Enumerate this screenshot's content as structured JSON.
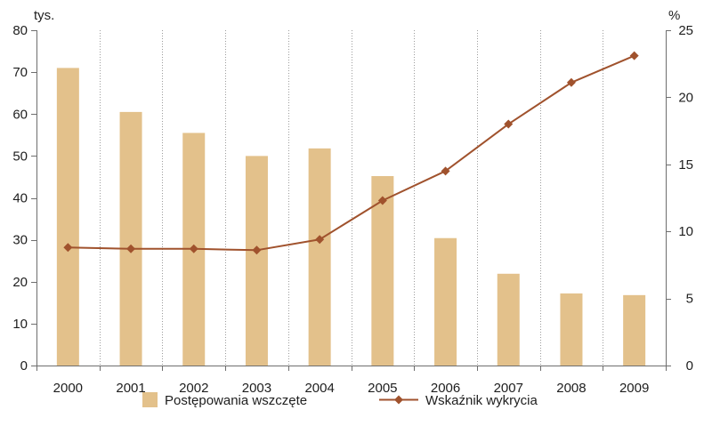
{
  "chart_data": {
    "type": "bar",
    "categories": [
      "2000",
      "2001",
      "2002",
      "2003",
      "2004",
      "2005",
      "2006",
      "2007",
      "2008",
      "2009"
    ],
    "series": [
      {
        "name": "Postępowania wszczęte",
        "type": "bar",
        "axis": "left",
        "color": "#E3C18B",
        "values": [
          71.0,
          60.5,
          55.5,
          50.0,
          51.8,
          45.2,
          30.4,
          21.9,
          17.2,
          16.8
        ]
      },
      {
        "name": "Wskaźnik wykrycia",
        "type": "line",
        "axis": "right",
        "color": "#A0522D",
        "marker": "diamond",
        "values": [
          8.8,
          8.7,
          8.7,
          8.6,
          9.4,
          12.3,
          14.5,
          18.0,
          21.1,
          23.1
        ]
      }
    ],
    "y_left": {
      "label": "tys.",
      "min": 0,
      "max": 80,
      "ticks": [
        0,
        10,
        20,
        30,
        40,
        50,
        60,
        70,
        80
      ]
    },
    "y_right": {
      "label": "%",
      "min": 0,
      "max": 25,
      "ticks": [
        0,
        5,
        10,
        15,
        20,
        25
      ]
    },
    "grid": {
      "vertical": "dotted",
      "horizontal": false
    },
    "legend": {
      "position": "bottom"
    }
  }
}
